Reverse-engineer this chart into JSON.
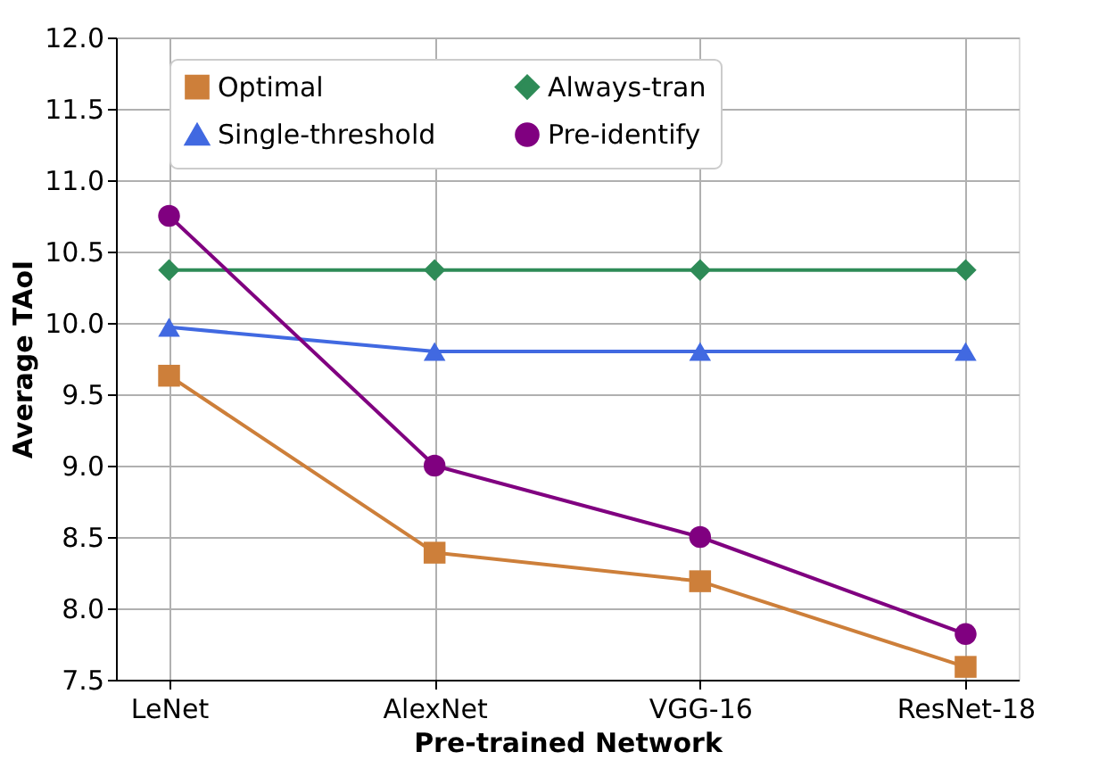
{
  "chart_data": {
    "type": "line",
    "xlabel": "Pre-trained Network",
    "ylabel": "Average TAoI",
    "categories": [
      "LeNet",
      "AlexNet",
      "VGG-16",
      "ResNet-18"
    ],
    "series": [
      {
        "name": "Optimal",
        "color": "#cd7f3a",
        "marker": "square",
        "values": [
          9.63,
          8.39,
          8.19,
          7.59
        ]
      },
      {
        "name": "Single-threshold",
        "color": "#4169e1",
        "marker": "triangle",
        "values": [
          9.97,
          9.8,
          9.8,
          9.8
        ]
      },
      {
        "name": "Always-tran",
        "color": "#2e8b57",
        "marker": "diamond",
        "values": [
          10.37,
          10.37,
          10.37,
          10.37
        ]
      },
      {
        "name": "Pre-identify",
        "color": "#800080",
        "marker": "circle",
        "values": [
          10.75,
          9.0,
          8.5,
          7.82
        ]
      }
    ],
    "ylim": [
      7.5,
      12.0
    ],
    "yticks": [
      7.5,
      {
        "value": 8,
        "label": "8.0"
      },
      8.5,
      {
        "value": 9,
        "label": "9.0"
      },
      9.5,
      {
        "value": 10,
        "label": "10.0"
      },
      10.5,
      {
        "value": 11,
        "label": "11.0"
      },
      11.5,
      {
        "value": 12,
        "label": "12.0"
      }
    ],
    "grid": true,
    "legend": "top",
    "line_style": "solid"
  }
}
